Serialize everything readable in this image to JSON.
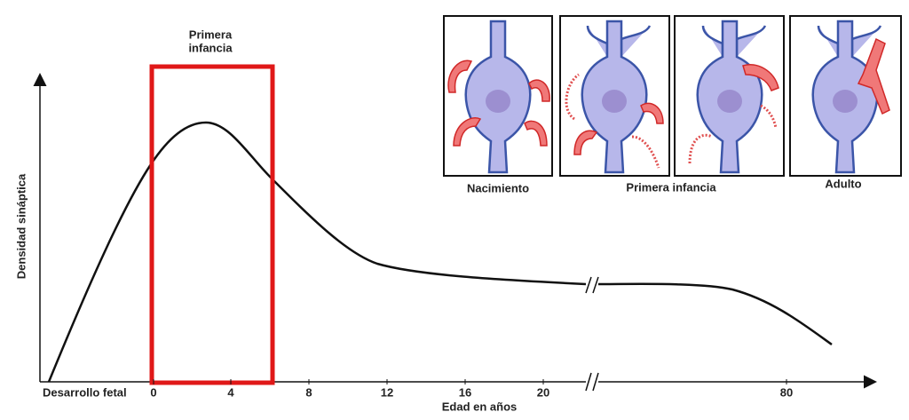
{
  "highlight": {
    "lines": [
      "Primera",
      "infancia"
    ]
  },
  "axis": {
    "y_label": "Densidad sináptica",
    "x_label": "Edad en años",
    "x_start": "Desarrollo fetal",
    "x_ticks": [
      "0",
      "4",
      "8",
      "12",
      "16",
      "20",
      "80"
    ]
  },
  "panels": {
    "labels": [
      "Nacimiento",
      "Primera infancia",
      "Adulto"
    ]
  }
}
